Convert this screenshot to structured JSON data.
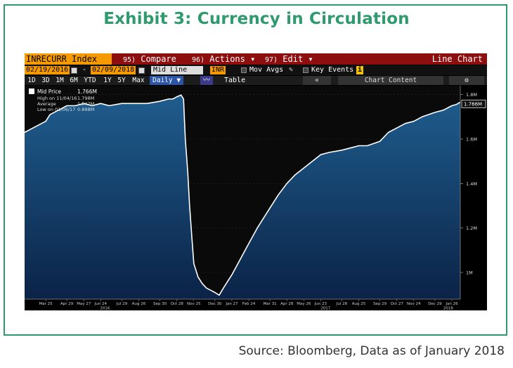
{
  "exhibit_title": "Exhibit 3: Currency in Circulation",
  "source": "Source: Bloomberg, Data as of January 2018",
  "terminal": {
    "ticker": "INRECURR Index",
    "menu": [
      {
        "num": "95)",
        "label": "Compare"
      },
      {
        "num": "96)",
        "label": "Actions ▾"
      },
      {
        "num": "97)",
        "label": "Edit ▾"
      }
    ],
    "chart_type_label": "Line Chart",
    "start_date": "02/19/2016",
    "date_sep": "-",
    "end_date": "02/09/2018",
    "price_field": "Mid Line",
    "currency": "INR",
    "mov_avgs": "Mov Avgs",
    "key_events": "Key Events",
    "ranges": [
      "1D",
      "3D",
      "1M",
      "6M",
      "YTD",
      "1Y",
      "5Y",
      "Max"
    ],
    "frequency": "Daily ▼",
    "table_label": "Table",
    "chart_content": "Chart Content",
    "back_icon": "double-chevron-left-icon",
    "gear_icon": "gear-icon",
    "legend": {
      "mid_label": "Mid Price",
      "mid_value": "1.766M",
      "high_label": "High on 11/04/16",
      "high_value": "1.798M",
      "avg_label": "Average",
      "avg_value": "1.547M",
      "low_label": "Low on 01/06/17",
      "low_value": "0.898M"
    },
    "last_value": "1.766M"
  },
  "colors": {
    "accent": "#2e9a6d",
    "ticker_bg": "#f59a00",
    "menu_bar": "#8d0e0e",
    "area_top": "#1f5d8e",
    "area_bottom": "#0b2347",
    "line": "#ffffff"
  },
  "chart_data": {
    "type": "area",
    "ylim": [
      0.88,
      1.84
    ],
    "xlim": [
      "2016-02-19",
      "2018-02-09"
    ],
    "y_ticks": [
      {
        "value": 1.0,
        "label": "1M"
      },
      {
        "value": 1.2,
        "label": "1.2M"
      },
      {
        "value": 1.4,
        "label": "1.4M"
      },
      {
        "value": 1.6,
        "label": "1.6M"
      },
      {
        "value": 1.8,
        "label": "1.8M"
      }
    ],
    "x_ticks": [
      {
        "date": "2016-03-25",
        "label": "Mar 25"
      },
      {
        "date": "2016-04-29",
        "label": "Apr 29"
      },
      {
        "date": "2016-05-27",
        "label": "May 27"
      },
      {
        "date": "2016-06-24",
        "label": "Jun 24"
      },
      {
        "date": "2016-07-29",
        "label": "Jul 29"
      },
      {
        "date": "2016-08-26",
        "label": "Aug 26"
      },
      {
        "date": "2016-09-30",
        "label": "Sep 30"
      },
      {
        "date": "2016-10-28",
        "label": "Oct 28"
      },
      {
        "date": "2016-11-25",
        "label": "Nov 25"
      },
      {
        "date": "2016-12-30",
        "label": "Dec 30"
      },
      {
        "date": "2017-01-27",
        "label": "Jan 27"
      },
      {
        "date": "2017-02-24",
        "label": "Feb 24"
      },
      {
        "date": "2017-03-31",
        "label": "Mar 31"
      },
      {
        "date": "2017-04-28",
        "label": "Apr 28"
      },
      {
        "date": "2017-05-26",
        "label": "May 26"
      },
      {
        "date": "2017-06-23",
        "label": "Jun 23"
      },
      {
        "date": "2017-07-28",
        "label": "Jul 28"
      },
      {
        "date": "2017-08-25",
        "label": "Aug 25"
      },
      {
        "date": "2017-09-29",
        "label": "Sep 29"
      },
      {
        "date": "2017-10-27",
        "label": "Oct 27"
      },
      {
        "date": "2017-11-24",
        "label": "Nov 24"
      },
      {
        "date": "2017-12-29",
        "label": "Dec 29"
      },
      {
        "date": "2018-01-26",
        "label": "Jan 26"
      }
    ],
    "year_labels": [
      {
        "date": "2016-07-01",
        "label": "2016"
      },
      {
        "date": "2017-07-01",
        "label": "2017"
      },
      {
        "date": "2018-01-20",
        "label": "2018"
      }
    ],
    "series": [
      {
        "points": [
          [
            "2016-02-19",
            1.63
          ],
          [
            "2016-03-04",
            1.65
          ],
          [
            "2016-03-18",
            1.67
          ],
          [
            "2016-03-25",
            1.68
          ],
          [
            "2016-04-01",
            1.71
          ],
          [
            "2016-04-15",
            1.73
          ],
          [
            "2016-04-29",
            1.75
          ],
          [
            "2016-05-13",
            1.75
          ],
          [
            "2016-05-27",
            1.76
          ],
          [
            "2016-06-10",
            1.75
          ],
          [
            "2016-06-24",
            1.76
          ],
          [
            "2016-07-08",
            1.75
          ],
          [
            "2016-07-29",
            1.76
          ],
          [
            "2016-08-12",
            1.76
          ],
          [
            "2016-08-26",
            1.76
          ],
          [
            "2016-09-09",
            1.76
          ],
          [
            "2016-09-30",
            1.77
          ],
          [
            "2016-10-14",
            1.78
          ],
          [
            "2016-10-21",
            1.78
          ],
          [
            "2016-10-28",
            1.79
          ],
          [
            "2016-11-04",
            1.798
          ],
          [
            "2016-11-08",
            1.78
          ],
          [
            "2016-11-11",
            1.6
          ],
          [
            "2016-11-15",
            1.45
          ],
          [
            "2016-11-18",
            1.3
          ],
          [
            "2016-11-22",
            1.15
          ],
          [
            "2016-11-25",
            1.04
          ],
          [
            "2016-12-02",
            0.98
          ],
          [
            "2016-12-09",
            0.95
          ],
          [
            "2016-12-16",
            0.93
          ],
          [
            "2016-12-23",
            0.92
          ],
          [
            "2016-12-30",
            0.91
          ],
          [
            "2017-01-06",
            0.898
          ],
          [
            "2017-01-13",
            0.93
          ],
          [
            "2017-01-20",
            0.96
          ],
          [
            "2017-01-27",
            0.99
          ],
          [
            "2017-02-10",
            1.06
          ],
          [
            "2017-02-24",
            1.13
          ],
          [
            "2017-03-10",
            1.2
          ],
          [
            "2017-03-31",
            1.29
          ],
          [
            "2017-04-14",
            1.35
          ],
          [
            "2017-04-28",
            1.4
          ],
          [
            "2017-05-12",
            1.44
          ],
          [
            "2017-05-26",
            1.47
          ],
          [
            "2017-06-09",
            1.5
          ],
          [
            "2017-06-23",
            1.53
          ],
          [
            "2017-07-07",
            1.54
          ],
          [
            "2017-07-28",
            1.55
          ],
          [
            "2017-08-11",
            1.56
          ],
          [
            "2017-08-25",
            1.57
          ],
          [
            "2017-09-08",
            1.57
          ],
          [
            "2017-09-29",
            1.59
          ],
          [
            "2017-10-13",
            1.63
          ],
          [
            "2017-10-27",
            1.65
          ],
          [
            "2017-11-10",
            1.67
          ],
          [
            "2017-11-24",
            1.68
          ],
          [
            "2017-12-08",
            1.7
          ],
          [
            "2017-12-29",
            1.72
          ],
          [
            "2018-01-12",
            1.73
          ],
          [
            "2018-01-26",
            1.75
          ],
          [
            "2018-02-02",
            1.755
          ],
          [
            "2018-02-09",
            1.766
          ]
        ]
      }
    ]
  }
}
